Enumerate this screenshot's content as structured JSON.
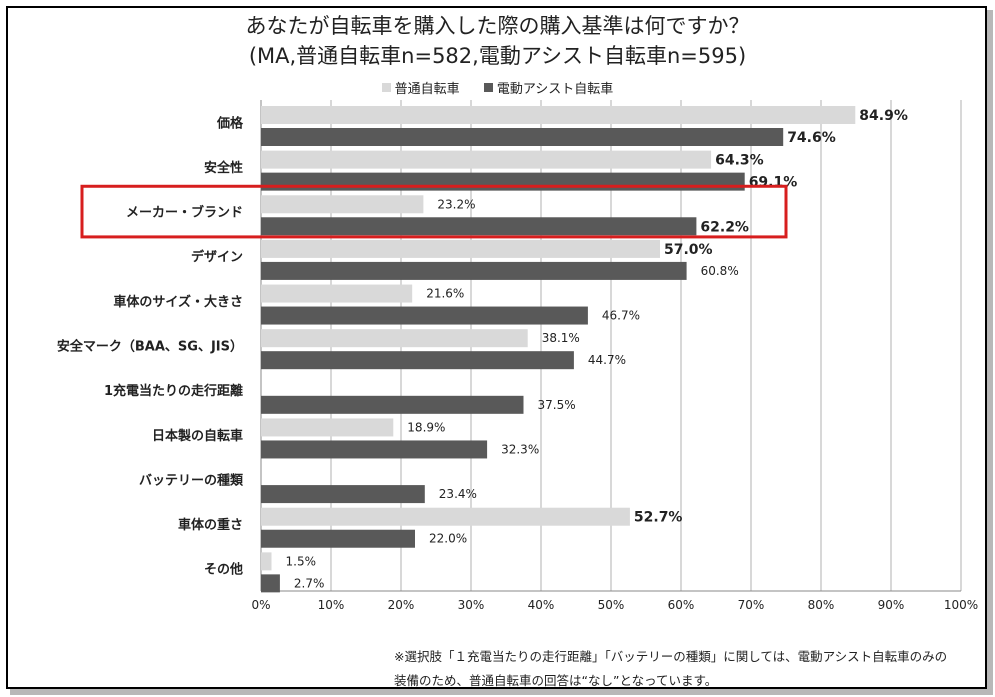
{
  "title_line1": "あなたが自転車を購入した際の購入基準は何ですか？",
  "title_line2": "(MA,普通自転車n=582,電動アシスト自転車n=595)",
  "footnote_line1": "※選択肢「１充電当たりの走行距離」「バッテリーの種類」に関しては、電動アシスト自転車のみの",
  "footnote_line2": "装備のため、普通自転車の回答は“なし”となっています。",
  "colors": {
    "light": "#d9d9d9",
    "dark": "#595959",
    "highlight": "#d71e1e",
    "grid": "#b0b0b0"
  },
  "chart_data": {
    "type": "bar",
    "orientation": "horizontal",
    "categories": [
      "価格",
      "安全性",
      "メーカー・ブランド",
      "デザイン",
      "車体のサイズ・大きさ",
      "安全マーク（BAA、SG、JIS）",
      "1充電当たりの走行距離",
      "日本製の自転車",
      "バッテリーの種類",
      "車体の重さ",
      "その他"
    ],
    "series": [
      {
        "name": "普通自転車",
        "values": [
          84.9,
          64.3,
          23.2,
          57.0,
          21.6,
          38.1,
          null,
          18.9,
          null,
          52.7,
          1.5
        ]
      },
      {
        "name": "電動アシスト自転車",
        "values": [
          74.6,
          69.1,
          62.2,
          60.8,
          46.7,
          44.7,
          37.5,
          32.3,
          23.4,
          22.0,
          2.7
        ]
      }
    ],
    "value_labels": [
      [
        "84.9%",
        "64.3%",
        "23.2%",
        "57.0%",
        "21.6%",
        "38.1%",
        "",
        "18.9%",
        "",
        "52.7%",
        "1.5%"
      ],
      [
        "74.6%",
        "69.1%",
        "62.2%",
        "60.8%",
        "46.7%",
        "44.7%",
        "37.5%",
        "32.3%",
        "23.4%",
        "22.0%",
        "2.7%"
      ]
    ],
    "bold_labels": [
      [
        true,
        true,
        false,
        true,
        false,
        false,
        false,
        false,
        false,
        true,
        false
      ],
      [
        true,
        true,
        true,
        false,
        false,
        false,
        false,
        false,
        false,
        false,
        false
      ]
    ],
    "xlim": [
      0,
      100
    ],
    "xticks": [
      "0%",
      "10%",
      "20%",
      "30%",
      "40%",
      "50%",
      "60%",
      "70%",
      "80%",
      "90%",
      "100%"
    ],
    "highlighted_category": "メーカー・ブランド",
    "grid": true,
    "legend_position": "top"
  }
}
